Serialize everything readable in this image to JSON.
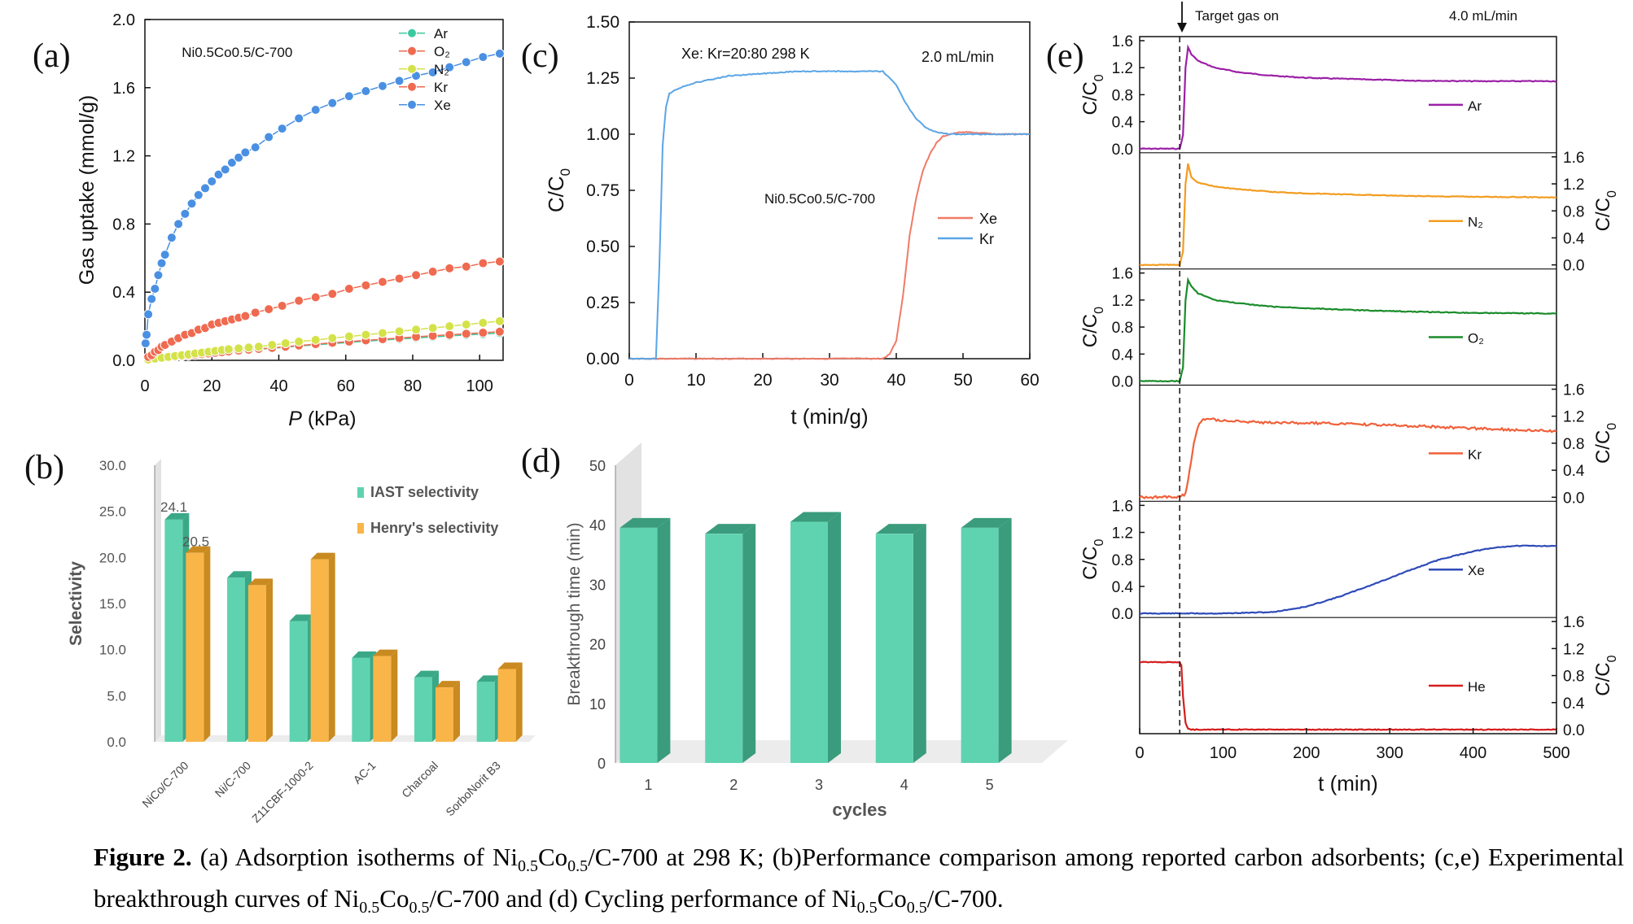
{
  "chart_data": [
    {
      "panel": "(a)",
      "type": "scatter",
      "subtitle": "Ni0.5Co0.5/C-700",
      "xlabel_italic": "P",
      "xlabel_unit": "(kPa)",
      "ylabel": "Gas uptake (mmol/g)",
      "xlim": [
        0,
        107
      ],
      "ylim": [
        0,
        2.0
      ],
      "xticks": [
        0,
        20,
        40,
        60,
        80,
        100
      ],
      "yticks": [
        0.0,
        0.4,
        0.8,
        1.2,
        1.6,
        2.0
      ],
      "legend_position": "right",
      "series": [
        {
          "name": "Xe",
          "color": "#4a90e2",
          "x": [
            0.2,
            0.5,
            1,
            2,
            3,
            4,
            5,
            6,
            8,
            10,
            12,
            14,
            16,
            18,
            20,
            22,
            24,
            26,
            28,
            30,
            33,
            37,
            41,
            46,
            51,
            56,
            61,
            66,
            71,
            76,
            81,
            86,
            91,
            96,
            101,
            106
          ],
          "y": [
            0.1,
            0.15,
            0.27,
            0.36,
            0.42,
            0.5,
            0.57,
            0.62,
            0.72,
            0.8,
            0.86,
            0.92,
            0.97,
            1.01,
            1.05,
            1.09,
            1.12,
            1.16,
            1.19,
            1.22,
            1.25,
            1.31,
            1.36,
            1.42,
            1.47,
            1.51,
            1.55,
            1.58,
            1.61,
            1.64,
            1.67,
            1.69,
            1.72,
            1.75,
            1.78,
            1.8
          ]
        },
        {
          "name": "Kr",
          "color": "#ef6a50",
          "x": [
            1,
            2,
            3,
            4,
            5,
            6,
            8,
            10,
            12,
            14,
            16,
            18,
            20,
            22,
            24,
            26,
            28,
            30,
            33,
            37,
            41,
            46,
            51,
            56,
            61,
            66,
            71,
            76,
            81,
            86,
            91,
            96,
            101,
            106
          ],
          "y": [
            0.02,
            0.03,
            0.05,
            0.06,
            0.08,
            0.09,
            0.11,
            0.13,
            0.15,
            0.16,
            0.18,
            0.19,
            0.21,
            0.22,
            0.23,
            0.24,
            0.25,
            0.26,
            0.28,
            0.3,
            0.32,
            0.35,
            0.37,
            0.39,
            0.42,
            0.44,
            0.46,
            0.48,
            0.5,
            0.52,
            0.54,
            0.55,
            0.57,
            0.58
          ]
        },
        {
          "name": "N₂",
          "color": "#d4e24a",
          "x": [
            1,
            3,
            5,
            7,
            9,
            11,
            13,
            15,
            17,
            19,
            21,
            23,
            25,
            28,
            31,
            34,
            38,
            42,
            46,
            51,
            56,
            61,
            66,
            71,
            76,
            81,
            86,
            91,
            96,
            101,
            106
          ],
          "y": [
            0.005,
            0.01,
            0.015,
            0.02,
            0.025,
            0.03,
            0.035,
            0.04,
            0.045,
            0.05,
            0.055,
            0.06,
            0.065,
            0.07,
            0.075,
            0.08,
            0.09,
            0.1,
            0.11,
            0.12,
            0.13,
            0.14,
            0.15,
            0.16,
            0.17,
            0.18,
            0.19,
            0.2,
            0.21,
            0.22,
            0.23
          ]
        },
        {
          "name": "O₂",
          "color": "#ef6a50",
          "x": [
            1,
            3,
            5,
            7,
            9,
            11,
            13,
            15,
            17,
            19,
            21,
            23,
            25,
            28,
            31,
            34,
            38,
            42,
            46,
            51,
            56,
            61,
            66,
            71,
            76,
            81,
            86,
            91,
            96,
            101,
            106
          ],
          "y": [
            0.004,
            0.008,
            0.012,
            0.016,
            0.02,
            0.024,
            0.028,
            0.032,
            0.036,
            0.04,
            0.044,
            0.048,
            0.052,
            0.057,
            0.062,
            0.067,
            0.073,
            0.08,
            0.087,
            0.095,
            0.103,
            0.11,
            0.117,
            0.124,
            0.131,
            0.138,
            0.144,
            0.15,
            0.156,
            0.162,
            0.168
          ]
        },
        {
          "name": "Ar",
          "color": "#3cc9a0",
          "x": [
            1,
            3,
            5,
            7,
            9,
            11,
            13,
            15,
            17,
            19,
            21,
            23,
            25,
            28,
            31,
            34,
            38,
            42,
            46,
            51,
            56,
            61,
            66,
            71,
            76,
            81,
            86,
            91,
            96,
            101,
            106
          ],
          "y": [
            0.003,
            0.007,
            0.011,
            0.015,
            0.019,
            0.023,
            0.027,
            0.031,
            0.035,
            0.039,
            0.043,
            0.047,
            0.051,
            0.055,
            0.06,
            0.065,
            0.071,
            0.077,
            0.084,
            0.091,
            0.098,
            0.105,
            0.112,
            0.119,
            0.125,
            0.131,
            0.137,
            0.143,
            0.149,
            0.154,
            0.16
          ]
        }
      ]
    },
    {
      "panel": "(b)",
      "type": "bar",
      "ylabel": "Selectivity",
      "ylim": [
        0,
        30
      ],
      "yticks": [
        "0.0",
        "5.0",
        "10.0",
        "15.0",
        "20.0",
        "25.0",
        "30.0"
      ],
      "categories": [
        "NiCo/C-700",
        "Ni/C-700",
        "Z11CBF-1000-2",
        "AC-1",
        "Charcoal",
        "SorboNorit B3"
      ],
      "series": [
        {
          "name": "IAST selectivity",
          "color": "#5fd3b0",
          "values": [
            24.1,
            17.8,
            13.1,
            9.1,
            7.0,
            6.5
          ]
        },
        {
          "name": "Henry's selectivity",
          "color": "#f9b548",
          "values": [
            20.5,
            17.0,
            19.8,
            9.3,
            5.9,
            7.9
          ]
        }
      ],
      "data_labels": [
        "24.1",
        "20.5"
      ]
    },
    {
      "panel": "(c)",
      "type": "line",
      "annotation_left": "Xe: Kr=20:80   298 K",
      "annotation_right": "2.0 mL/min",
      "subtitle": "Ni0.5Co0.5/C-700",
      "xlabel": "t (min/g)",
      "ylabel": "C/C",
      "ylabel_sub": "0",
      "xlim": [
        0,
        60
      ],
      "ylim": [
        0,
        1.5
      ],
      "xticks": [
        0,
        10,
        20,
        30,
        40,
        50,
        60
      ],
      "yticks": [
        "0.00",
        "0.25",
        "0.50",
        "0.75",
        "1.00",
        "1.25",
        "1.50"
      ],
      "series": [
        {
          "name": "Xe",
          "color": "#f07a66",
          "x": [
            0,
            38,
            39,
            40,
            41,
            42,
            43,
            44,
            45,
            46,
            47,
            48,
            50,
            55,
            60
          ],
          "y": [
            0,
            0,
            0.02,
            0.08,
            0.28,
            0.55,
            0.72,
            0.84,
            0.91,
            0.96,
            0.99,
            1.0,
            1.01,
            1.0,
            1.0
          ]
        },
        {
          "name": "Kr",
          "color": "#5aa5e6",
          "x": [
            0,
            4,
            4.5,
            5,
            5.5,
            6,
            7,
            10,
            15,
            20,
            25,
            30,
            35,
            38,
            40,
            41,
            42,
            43,
            44,
            45,
            46,
            48,
            50,
            55,
            60
          ],
          "y": [
            0,
            0,
            0.4,
            0.95,
            1.12,
            1.18,
            1.2,
            1.23,
            1.26,
            1.27,
            1.28,
            1.28,
            1.28,
            1.28,
            1.22,
            1.16,
            1.11,
            1.07,
            1.04,
            1.02,
            1.01,
            1.0,
            1.0,
            1.0,
            1.0
          ]
        }
      ]
    },
    {
      "panel": "(d)",
      "type": "bar",
      "xlabel": "cycles",
      "ylabel": "Breakthrough time (min)",
      "ylim": [
        0,
        50
      ],
      "yticks": [
        0,
        10,
        20,
        30,
        40,
        50
      ],
      "categories": [
        "1",
        "2",
        "3",
        "4",
        "5"
      ],
      "values": [
        39.5,
        38.5,
        40.5,
        38.5,
        39.5
      ],
      "color": "#5fd3b0"
    },
    {
      "panel": "(e)",
      "type": "line",
      "annotation_top": "Target gas on",
      "annotation_flow": "4.0 mL/min",
      "xlabel": "t (min)",
      "ylabel": "C/C",
      "ylabel_sub": "0",
      "xlim": [
        0,
        500
      ],
      "ylim": [
        0,
        1.6
      ],
      "xticks": [
        0,
        100,
        200,
        300,
        400,
        500
      ],
      "yticks": [
        "0.0",
        "0.4",
        "0.8",
        "1.2",
        "1.6"
      ],
      "marker_x": 48,
      "series": [
        {
          "name": "Ar",
          "color": "#9b20a6",
          "x": [
            0,
            48,
            52,
            55,
            58,
            62,
            70,
            90,
            120,
            160,
            200,
            260,
            320,
            400,
            500
          ],
          "y": [
            0,
            0,
            0.2,
            1.2,
            1.5,
            1.4,
            1.3,
            1.2,
            1.13,
            1.08,
            1.05,
            1.03,
            1.01,
            1.0,
            1.0
          ]
        },
        {
          "name": "N₂",
          "color": "#f39c1f",
          "x": [
            0,
            48,
            52,
            55,
            58,
            62,
            70,
            90,
            120,
            160,
            200,
            260,
            320,
            400,
            500
          ],
          "y": [
            0,
            0,
            0.2,
            1.2,
            1.5,
            1.3,
            1.22,
            1.16,
            1.12,
            1.08,
            1.06,
            1.04,
            1.02,
            1.01,
            1.0
          ]
        },
        {
          "name": "O₂",
          "color": "#1a8c2a",
          "x": [
            0,
            48,
            52,
            55,
            58,
            62,
            70,
            90,
            120,
            160,
            200,
            260,
            320,
            400,
            500
          ],
          "y": [
            0,
            0,
            0.2,
            1.2,
            1.5,
            1.4,
            1.3,
            1.2,
            1.15,
            1.1,
            1.08,
            1.05,
            1.03,
            1.01,
            1.0
          ]
        },
        {
          "name": "Kr",
          "color": "#f0603a",
          "x": [
            0,
            48,
            55,
            60,
            65,
            70,
            75,
            80,
            90,
            120,
            160,
            200,
            260,
            320,
            400,
            450,
            500
          ],
          "y": [
            0,
            0,
            0.05,
            0.4,
            0.8,
            1.05,
            1.15,
            1.17,
            1.15,
            1.12,
            1.1,
            1.1,
            1.08,
            1.06,
            1.02,
            1.0,
            0.98
          ]
        },
        {
          "name": "Xe",
          "color": "#2e4bb8",
          "x": [
            0,
            100,
            160,
            200,
            240,
            280,
            320,
            360,
            400,
            430,
            450,
            480,
            500
          ],
          "y": [
            0,
            0,
            0.02,
            0.1,
            0.25,
            0.43,
            0.62,
            0.8,
            0.92,
            0.98,
            1.0,
            1.0,
            1.0
          ]
        },
        {
          "name": "He",
          "color": "#d61c1c",
          "x": [
            0,
            48,
            50,
            52,
            55,
            58,
            62,
            100,
            200,
            300,
            400,
            500
          ],
          "y": [
            1.0,
            1.0,
            0.95,
            0.5,
            0.1,
            0.01,
            0,
            0,
            0,
            0,
            0,
            0
          ]
        }
      ]
    }
  ],
  "caption": {
    "label": "Figure 2.",
    "part1": " (a) Adsorption isotherms of Ni",
    "sub1": "0.5",
    "part2": "Co",
    "sub2": "0.5",
    "part3": "/C-700 at 298 K; (b)Performance comparison among reported carbon adsorbents; (c,e) Experimental breakthrough curves of Ni",
    "sub3": "0.5",
    "part4": "Co",
    "sub4": "0.5",
    "part5": "/C-700  and (d) Cycling performance of Ni",
    "sub5": "0.5",
    "part6": "Co",
    "sub6": "0.5",
    "part7": "/C-700."
  }
}
